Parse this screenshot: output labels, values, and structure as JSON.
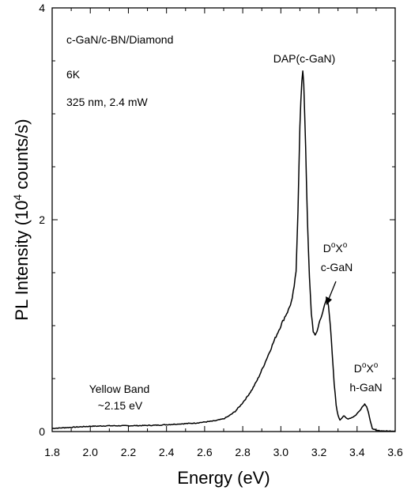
{
  "chart_data": {
    "type": "line",
    "xlabel": "Energy (eV)",
    "ylabel_parts": [
      "PL Intensity (10",
      "4",
      " counts/s)"
    ],
    "xlim": [
      1.8,
      3.6
    ],
    "ylim": [
      0,
      4
    ],
    "x_ticks": [
      "1.8",
      "2.0",
      "2.2",
      "2.4",
      "2.6",
      "2.8",
      "3.0",
      "3.2",
      "3.4",
      "3.6"
    ],
    "x_tick_values": [
      1.8,
      2.0,
      2.2,
      2.4,
      2.6,
      2.8,
      3.0,
      3.2,
      3.4,
      3.6
    ],
    "y_ticks": [
      "0",
      "2",
      "4"
    ],
    "y_tick_values": [
      0,
      2,
      4
    ],
    "legend_text": [
      "c-GaN/c-BN/Diamond",
      "6K",
      "325 nm, 2.4 mW"
    ],
    "annotations": {
      "dap": "DAP(c-GaN)",
      "dx_c_line1": {
        "base1": "D",
        "sup1": "o",
        "base2": "X",
        "sup2": "o"
      },
      "dx_c_line2": "c-GaN",
      "dx_h_line1": {
        "base1": "D",
        "sup1": "o",
        "base2": "X",
        "sup2": "o"
      },
      "dx_h_line2": "h-GaN",
      "yellow_line1": "Yellow Band",
      "yellow_line2": "~2.15 eV"
    },
    "series": [
      {
        "x": [
          1.8,
          1.85,
          1.9,
          1.95,
          2.0,
          2.05,
          2.1,
          2.15,
          2.2,
          2.25,
          2.3,
          2.35,
          2.4,
          2.45,
          2.5,
          2.55,
          2.6,
          2.65,
          2.7,
          2.73,
          2.76,
          2.79,
          2.82,
          2.85,
          2.88,
          2.91,
          2.94,
          2.97,
          3.0,
          3.02,
          3.04,
          3.06,
          3.08,
          3.09,
          3.1,
          3.11,
          3.115,
          3.12,
          3.13,
          3.14,
          3.15,
          3.16,
          3.17,
          3.18,
          3.19,
          3.2,
          3.21,
          3.22,
          3.23,
          3.24,
          3.245,
          3.25,
          3.26,
          3.27,
          3.28,
          3.29,
          3.3,
          3.31,
          3.32,
          3.33,
          3.34,
          3.35,
          3.37,
          3.39,
          3.41,
          3.43,
          3.44,
          3.45,
          3.46,
          3.47,
          3.48,
          3.5,
          3.55,
          3.6
        ],
        "y": [
          0.03,
          0.035,
          0.04,
          0.045,
          0.05,
          0.052,
          0.055,
          0.055,
          0.055,
          0.056,
          0.058,
          0.06,
          0.065,
          0.07,
          0.075,
          0.08,
          0.09,
          0.1,
          0.12,
          0.15,
          0.19,
          0.25,
          0.32,
          0.4,
          0.5,
          0.62,
          0.75,
          0.88,
          1.0,
          1.08,
          1.15,
          1.25,
          1.5,
          2.1,
          2.9,
          3.3,
          3.37,
          3.3,
          2.7,
          1.95,
          1.45,
          1.12,
          0.95,
          0.9,
          0.95,
          1.02,
          1.08,
          1.12,
          1.2,
          1.25,
          1.24,
          1.2,
          1.0,
          0.72,
          0.45,
          0.25,
          0.15,
          0.11,
          0.13,
          0.15,
          0.13,
          0.12,
          0.13,
          0.15,
          0.19,
          0.24,
          0.26,
          0.24,
          0.18,
          0.09,
          0.03,
          0.01,
          0.005,
          0.005
        ]
      }
    ],
    "zero_line": "dotted",
    "grid": false
  }
}
